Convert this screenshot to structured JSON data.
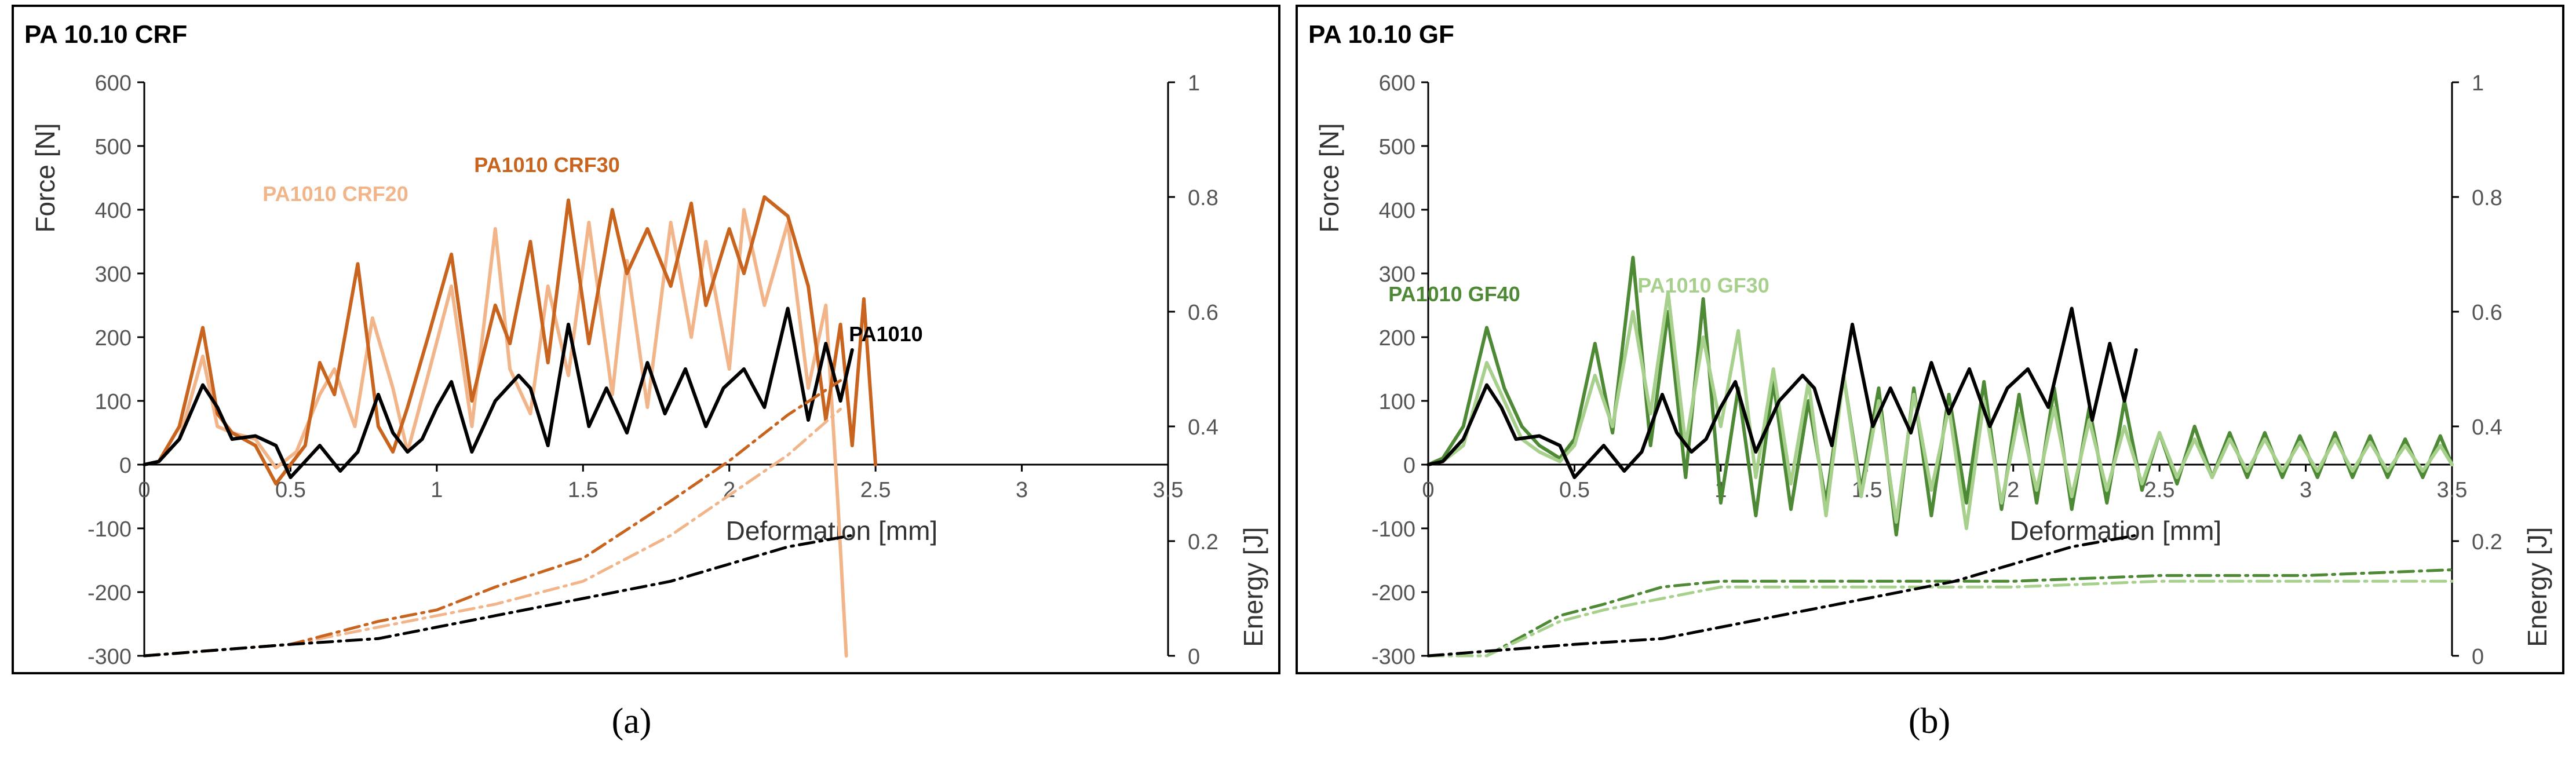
{
  "chart_data": [
    {
      "type": "line",
      "title": "PA 10.10 CRF",
      "xlabel": "Deformation [mm]",
      "ylabel": "Force [N]",
      "y2label": "Energy [J]",
      "xlim": [
        0,
        3.5
      ],
      "ylim": [
        -300,
        600
      ],
      "y2lim": [
        0,
        1
      ],
      "xticks": [
        "0",
        "0.5",
        "1",
        "1.5",
        "2",
        "2.5",
        "3",
        "3.5"
      ],
      "yticks": [
        "-300",
        "-200",
        "-100",
        "0",
        "100",
        "200",
        "300",
        "400",
        "500",
        "600"
      ],
      "y2ticks": [
        "0",
        "0.2",
        "0.4",
        "0.6",
        "0.8",
        "1"
      ],
      "series": [
        {
          "name": "PA1010 CRF20",
          "kind": "force",
          "color": "#f2b58a",
          "x": [
            0,
            0.05,
            0.12,
            0.2,
            0.25,
            0.3,
            0.38,
            0.45,
            0.52,
            0.6,
            0.65,
            0.72,
            0.78,
            0.85,
            0.9,
            0.97,
            1.05,
            1.12,
            1.2,
            1.25,
            1.32,
            1.38,
            1.45,
            1.52,
            1.6,
            1.65,
            1.72,
            1.8,
            1.87,
            1.92,
            2.0,
            2.05,
            2.12,
            2.2,
            2.27,
            2.33,
            2.37,
            2.4
          ],
          "y": [
            0,
            5,
            40,
            170,
            60,
            50,
            40,
            -5,
            20,
            110,
            150,
            60,
            230,
            120,
            20,
            140,
            280,
            60,
            370,
            150,
            80,
            280,
            140,
            380,
            110,
            320,
            90,
            380,
            200,
            350,
            150,
            400,
            250,
            380,
            120,
            250,
            -50,
            -300
          ]
        },
        {
          "name": "PA1010 CRF30",
          "kind": "force",
          "color": "#c8641e",
          "x": [
            0,
            0.05,
            0.12,
            0.2,
            0.25,
            0.3,
            0.38,
            0.45,
            0.5,
            0.55,
            0.6,
            0.65,
            0.73,
            0.8,
            0.85,
            0.9,
            0.97,
            1.05,
            1.12,
            1.2,
            1.25,
            1.32,
            1.38,
            1.45,
            1.52,
            1.6,
            1.65,
            1.72,
            1.8,
            1.87,
            1.92,
            2.0,
            2.05,
            2.12,
            2.2,
            2.27,
            2.33,
            2.38,
            2.42,
            2.46,
            2.5
          ],
          "y": [
            0,
            5,
            60,
            215,
            80,
            50,
            30,
            -30,
            0,
            30,
            160,
            110,
            315,
            60,
            20,
            90,
            200,
            330,
            100,
            250,
            190,
            350,
            160,
            415,
            190,
            400,
            300,
            370,
            280,
            410,
            250,
            370,
            300,
            420,
            390,
            280,
            70,
            220,
            30,
            260,
            0
          ]
        },
        {
          "name": "PA1010",
          "kind": "force",
          "color": "#000000",
          "x": [
            0,
            0.05,
            0.12,
            0.2,
            0.25,
            0.3,
            0.38,
            0.45,
            0.5,
            0.55,
            0.6,
            0.67,
            0.73,
            0.8,
            0.85,
            0.9,
            0.95,
            1.0,
            1.05,
            1.12,
            1.2,
            1.28,
            1.32,
            1.38,
            1.45,
            1.52,
            1.58,
            1.65,
            1.72,
            1.78,
            1.85,
            1.92,
            1.98,
            2.05,
            2.12,
            2.2,
            2.27,
            2.33,
            2.38,
            2.42
          ],
          "y": [
            0,
            5,
            40,
            125,
            90,
            40,
            45,
            30,
            -20,
            5,
            30,
            -10,
            20,
            110,
            50,
            20,
            40,
            90,
            130,
            20,
            100,
            140,
            120,
            30,
            220,
            60,
            120,
            50,
            160,
            80,
            150,
            60,
            120,
            150,
            90,
            245,
            70,
            190,
            100,
            180
          ]
        },
        {
          "name": "PA1010 CRF20 energy",
          "kind": "energy",
          "style": "dashdot",
          "color": "#f2b58a",
          "x": [
            0,
            0.5,
            0.8,
            1.0,
            1.2,
            1.5,
            1.8,
            2.0,
            2.2,
            2.38
          ],
          "y": [
            0,
            0.02,
            0.05,
            0.07,
            0.09,
            0.13,
            0.21,
            0.28,
            0.35,
            0.43
          ]
        },
        {
          "name": "PA1010 CRF30 energy",
          "kind": "energy",
          "style": "dashdot",
          "color": "#c8641e",
          "x": [
            0,
            0.5,
            0.8,
            1.0,
            1.2,
            1.5,
            1.8,
            2.0,
            2.2,
            2.38
          ],
          "y": [
            0,
            0.02,
            0.06,
            0.08,
            0.12,
            0.17,
            0.27,
            0.34,
            0.42,
            0.48
          ]
        },
        {
          "name": "PA1010 energy",
          "kind": "energy",
          "style": "dashdot",
          "color": "#000000",
          "x": [
            0,
            0.5,
            0.8,
            1.0,
            1.2,
            1.5,
            1.8,
            2.0,
            2.2,
            2.42
          ],
          "y": [
            0,
            0.02,
            0.03,
            0.05,
            0.07,
            0.1,
            0.13,
            0.16,
            0.19,
            0.21
          ]
        }
      ],
      "annotations": [
        {
          "text": "PA1010 CRF20",
          "color": "#f2b58a"
        },
        {
          "text": "PA1010 CRF30",
          "color": "#c8641e"
        },
        {
          "text": "PA1010",
          "color": "#000000"
        }
      ]
    },
    {
      "type": "line",
      "title": "PA 10.10 GF",
      "xlabel": "Deformation [mm]",
      "ylabel": "Force [N]",
      "y2label": "Energy [J]",
      "xlim": [
        0,
        3.5
      ],
      "ylim": [
        -300,
        600
      ],
      "y2lim": [
        0,
        1
      ],
      "xticks": [
        "0",
        "0.5",
        "1",
        "1.5",
        "2",
        "2.5",
        "3",
        "3.5"
      ],
      "yticks": [
        "-300",
        "-200",
        "-100",
        "0",
        "100",
        "200",
        "300",
        "400",
        "500",
        "600"
      ],
      "y2ticks": [
        "0",
        "0.2",
        "0.4",
        "0.6",
        "0.8",
        "1"
      ],
      "series": [
        {
          "name": "PA1010 GF40",
          "kind": "force",
          "color": "#4e8a35",
          "x": [
            0,
            0.05,
            0.12,
            0.2,
            0.26,
            0.32,
            0.38,
            0.45,
            0.5,
            0.57,
            0.63,
            0.7,
            0.76,
            0.82,
            0.88,
            0.94,
            1.0,
            1.06,
            1.12,
            1.18,
            1.24,
            1.3,
            1.36,
            1.42,
            1.48,
            1.54,
            1.6,
            1.66,
            1.72,
            1.78,
            1.84,
            1.9,
            1.96,
            2.02,
            2.08,
            2.14,
            2.2,
            2.26,
            2.32,
            2.38,
            2.44,
            2.5,
            2.56,
            2.62,
            2.68,
            2.74,
            2.8,
            2.86,
            2.92,
            2.98,
            3.04,
            3.1,
            3.16,
            3.22,
            3.28,
            3.34,
            3.4,
            3.46,
            3.5
          ],
          "y": [
            0,
            10,
            60,
            215,
            120,
            60,
            30,
            10,
            40,
            190,
            50,
            325,
            30,
            240,
            -20,
            260,
            -60,
            120,
            -80,
            130,
            -70,
            100,
            -60,
            140,
            -40,
            120,
            -110,
            120,
            -80,
            110,
            -60,
            130,
            -70,
            110,
            -60,
            120,
            -70,
            90,
            -60,
            100,
            -40,
            50,
            -30,
            60,
            -20,
            50,
            -20,
            50,
            -20,
            45,
            -20,
            50,
            -20,
            45,
            -20,
            40,
            -20,
            45,
            0
          ]
        },
        {
          "name": "PA1010 GF30",
          "kind": "force",
          "color": "#a8d08d",
          "x": [
            0,
            0.05,
            0.12,
            0.2,
            0.26,
            0.32,
            0.38,
            0.45,
            0.5,
            0.57,
            0.63,
            0.7,
            0.76,
            0.82,
            0.88,
            0.94,
            1.0,
            1.06,
            1.12,
            1.18,
            1.24,
            1.3,
            1.36,
            1.42,
            1.48,
            1.54,
            1.6,
            1.66,
            1.72,
            1.78,
            1.84,
            1.9,
            1.96,
            2.02,
            2.08,
            2.14,
            2.2,
            2.26,
            2.32,
            2.38,
            2.44,
            2.5,
            2.56,
            2.62,
            2.68,
            2.74,
            2.8,
            2.86,
            2.92,
            2.98,
            3.04,
            3.1,
            3.16,
            3.22,
            3.28,
            3.34,
            3.4,
            3.46,
            3.5
          ],
          "y": [
            0,
            5,
            30,
            160,
            100,
            40,
            20,
            5,
            30,
            140,
            60,
            240,
            80,
            270,
            30,
            200,
            60,
            210,
            -20,
            150,
            -30,
            130,
            -80,
            140,
            -50,
            100,
            -90,
            110,
            -40,
            90,
            -100,
            100,
            -60,
            80,
            -40,
            90,
            -50,
            70,
            -40,
            60,
            -30,
            50,
            -20,
            40,
            -20,
            40,
            -10,
            40,
            -10,
            35,
            -10,
            40,
            -10,
            35,
            -10,
            30,
            -10,
            30,
            0
          ]
        },
        {
          "name": "PA1010",
          "kind": "force",
          "color": "#000000",
          "x": [
            0,
            0.05,
            0.12,
            0.2,
            0.25,
            0.3,
            0.38,
            0.45,
            0.5,
            0.55,
            0.6,
            0.67,
            0.73,
            0.8,
            0.85,
            0.9,
            0.95,
            1.0,
            1.05,
            1.12,
            1.2,
            1.28,
            1.32,
            1.38,
            1.45,
            1.52,
            1.58,
            1.65,
            1.72,
            1.78,
            1.85,
            1.92,
            1.98,
            2.05,
            2.12,
            2.2,
            2.27,
            2.33,
            2.38,
            2.42
          ],
          "y": [
            0,
            5,
            40,
            125,
            90,
            40,
            45,
            30,
            -20,
            5,
            30,
            -10,
            20,
            110,
            50,
            20,
            40,
            90,
            130,
            20,
            100,
            140,
            120,
            30,
            220,
            60,
            120,
            50,
            160,
            80,
            150,
            60,
            120,
            150,
            90,
            245,
            70,
            190,
            100,
            180
          ]
        },
        {
          "name": "PA1010 GF40 energy",
          "kind": "energy",
          "style": "dashdot",
          "color": "#4e8a35",
          "x": [
            0,
            0.2,
            0.45,
            0.6,
            0.8,
            1.0,
            1.5,
            2.0,
            2.5,
            3.0,
            3.5
          ],
          "y": [
            0,
            0.0,
            0.07,
            0.09,
            0.12,
            0.13,
            0.13,
            0.13,
            0.14,
            0.14,
            0.15
          ]
        },
        {
          "name": "PA1010 GF30 energy",
          "kind": "energy",
          "style": "dashdot",
          "color": "#a8d08d",
          "x": [
            0,
            0.2,
            0.45,
            0.6,
            0.8,
            1.0,
            1.5,
            2.0,
            2.5,
            3.0,
            3.5
          ],
          "y": [
            0,
            0.0,
            0.06,
            0.08,
            0.1,
            0.12,
            0.12,
            0.12,
            0.13,
            0.13,
            0.13
          ]
        },
        {
          "name": "PA1010 energy",
          "kind": "energy",
          "style": "dashdot",
          "color": "#000000",
          "x": [
            0,
            0.5,
            0.8,
            1.0,
            1.2,
            1.5,
            1.8,
            2.0,
            2.2,
            2.42
          ],
          "y": [
            0,
            0.02,
            0.03,
            0.05,
            0.07,
            0.1,
            0.13,
            0.16,
            0.19,
            0.21
          ]
        }
      ],
      "annotations": [
        {
          "text": "PA1010 GF40",
          "color": "#4e8a35"
        },
        {
          "text": "PA1010 GF30",
          "color": "#a8d08d"
        }
      ]
    }
  ],
  "captions": {
    "a": "(a)",
    "b": "(b)"
  }
}
